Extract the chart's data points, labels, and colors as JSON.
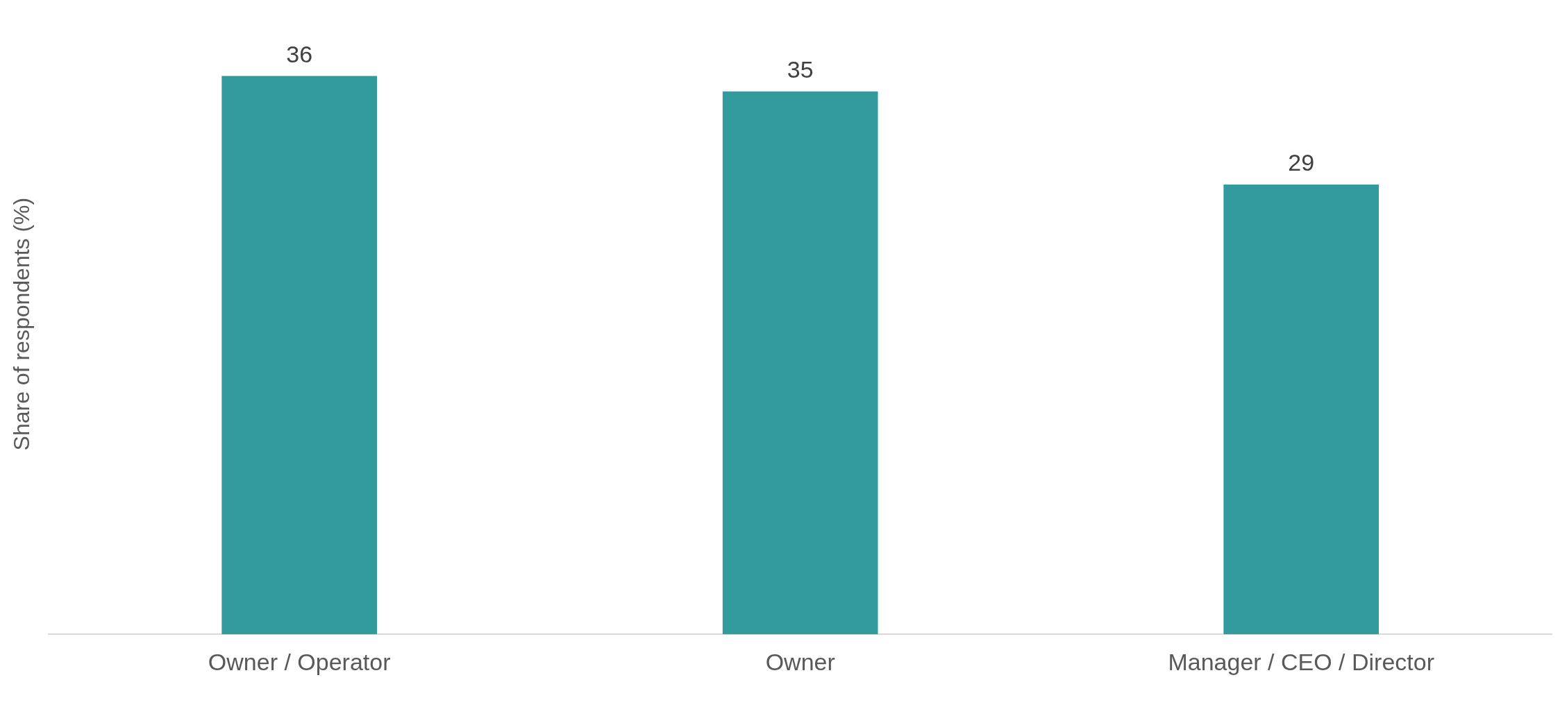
{
  "chart_data": {
    "type": "bar",
    "ylabel": "Share of respondents (%)",
    "categories": [
      "Owner / Operator",
      "Owner",
      "Manager / CEO / Director"
    ],
    "values": [
      36,
      35,
      29
    ],
    "color": "#339b9d",
    "data_labels": true,
    "grid": false,
    "legend": false
  }
}
